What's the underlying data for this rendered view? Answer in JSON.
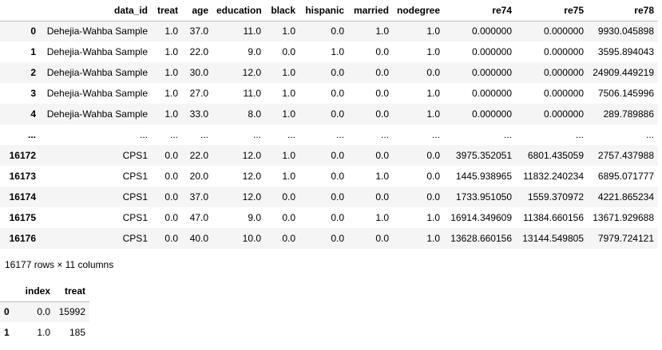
{
  "table": {
    "columns": [
      "data_id",
      "treat",
      "age",
      "education",
      "black",
      "hispanic",
      "married",
      "nodegree",
      "re74",
      "re75",
      "re78"
    ],
    "rows": [
      [
        "0",
        "Dehejia-Wahba Sample",
        "1.0",
        "37.0",
        "11.0",
        "1.0",
        "0.0",
        "1.0",
        "1.0",
        "0.000000",
        "0.000000",
        "9930.045898"
      ],
      [
        "1",
        "Dehejia-Wahba Sample",
        "1.0",
        "22.0",
        "9.0",
        "0.0",
        "1.0",
        "0.0",
        "1.0",
        "0.000000",
        "0.000000",
        "3595.894043"
      ],
      [
        "2",
        "Dehejia-Wahba Sample",
        "1.0",
        "30.0",
        "12.0",
        "1.0",
        "0.0",
        "0.0",
        "0.0",
        "0.000000",
        "0.000000",
        "24909.449219"
      ],
      [
        "3",
        "Dehejia-Wahba Sample",
        "1.0",
        "27.0",
        "11.0",
        "1.0",
        "0.0",
        "0.0",
        "1.0",
        "0.000000",
        "0.000000",
        "7506.145996"
      ],
      [
        "4",
        "Dehejia-Wahba Sample",
        "1.0",
        "33.0",
        "8.0",
        "1.0",
        "0.0",
        "0.0",
        "1.0",
        "0.000000",
        "0.000000",
        "289.789886"
      ],
      [
        "...",
        "...",
        "...",
        "...",
        "...",
        "...",
        "...",
        "...",
        "...",
        "...",
        "...",
        "..."
      ],
      [
        "16172",
        "CPS1",
        "0.0",
        "22.0",
        "12.0",
        "1.0",
        "0.0",
        "0.0",
        "0.0",
        "3975.352051",
        "6801.435059",
        "2757.437988"
      ],
      [
        "16173",
        "CPS1",
        "0.0",
        "20.0",
        "12.0",
        "1.0",
        "0.0",
        "1.0",
        "0.0",
        "1445.938965",
        "11832.240234",
        "6895.071777"
      ],
      [
        "16174",
        "CPS1",
        "0.0",
        "37.0",
        "12.0",
        "0.0",
        "0.0",
        "0.0",
        "0.0",
        "1733.951050",
        "1559.370972",
        "4221.865234"
      ],
      [
        "16175",
        "CPS1",
        "0.0",
        "47.0",
        "9.0",
        "0.0",
        "0.0",
        "1.0",
        "1.0",
        "16914.349609",
        "11384.660156",
        "13671.929688"
      ],
      [
        "16176",
        "CPS1",
        "0.0",
        "40.0",
        "10.0",
        "0.0",
        "0.0",
        "0.0",
        "1.0",
        "13628.660156",
        "13144.549805",
        "7979.724121"
      ]
    ]
  },
  "footer": "16177 rows × 11 columns",
  "table2": {
    "columns": [
      "index",
      "treat"
    ],
    "rows": [
      [
        "0",
        "0.0",
        "15992"
      ],
      [
        "1",
        "1.0",
        "185"
      ]
    ]
  }
}
